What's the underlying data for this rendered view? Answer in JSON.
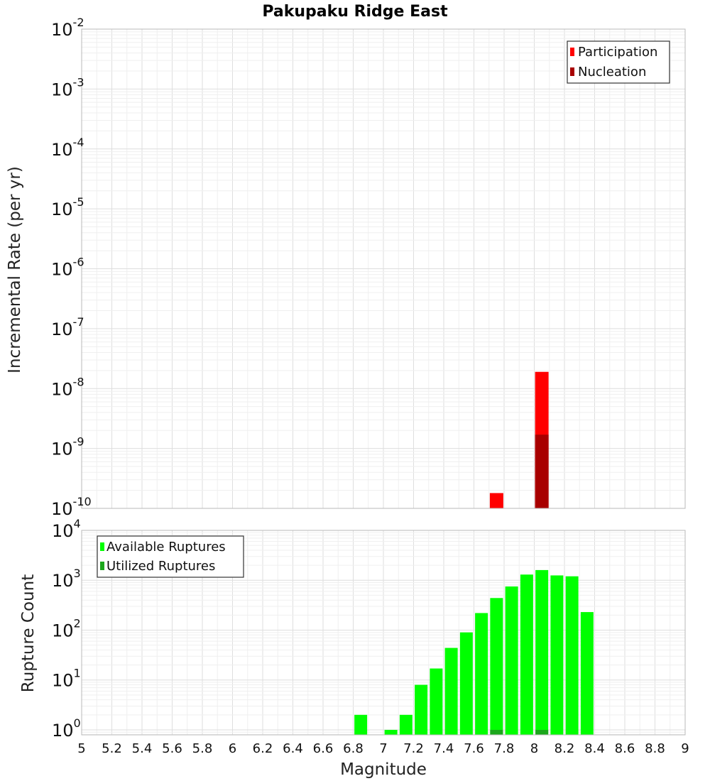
{
  "figure": {
    "title": "Pakupaku Ridge East"
  },
  "colors": {
    "participation": "#ff0000",
    "nucleation": "#a80000",
    "available": "#00ff00",
    "utilized": "#1ca71c"
  },
  "chart_data": [
    {
      "type": "bar",
      "name": "rate-panel",
      "ylabel": "Incremental Rate (per yr)",
      "xlabel": "Magnitude",
      "yscale": "log",
      "xlim": [
        5,
        9
      ],
      "ylim_exp": [
        -10,
        -2
      ],
      "ytick_base": "10",
      "ytick_exponents": [
        "-10",
        "-9",
        "-8",
        "-7",
        "-6",
        "-5",
        "-4",
        "-3",
        "-2"
      ],
      "legend": {
        "position": "top-right",
        "entries": [
          "Participation",
          "Nucleation"
        ]
      },
      "series": [
        {
          "name": "Participation",
          "x": [
            7.75,
            8.05
          ],
          "values": [
            1.8e-10,
            1.9e-08
          ]
        },
        {
          "name": "Nucleation",
          "x": [
            8.05
          ],
          "values": [
            1.7e-09
          ]
        }
      ]
    },
    {
      "type": "bar",
      "name": "count-panel",
      "ylabel": "Rupture Count",
      "xlabel": "Magnitude",
      "yscale": "log",
      "xlim": [
        5,
        9
      ],
      "ylim_exp": [
        -0.1,
        4
      ],
      "ytick_base": "10",
      "ytick_exponents": [
        "0",
        "1",
        "2",
        "3",
        "4"
      ],
      "legend": {
        "position": "top-left",
        "entries": [
          "Available Ruptures",
          "Utilized Ruptures"
        ]
      },
      "series": [
        {
          "name": "Available Ruptures",
          "x": [
            6.85,
            7.05,
            7.15,
            7.25,
            7.35,
            7.45,
            7.55,
            7.65,
            7.75,
            7.85,
            7.95,
            8.05,
            8.15,
            8.25,
            8.35
          ],
          "values": [
            2,
            1,
            2,
            8,
            17,
            44,
            90,
            220,
            440,
            750,
            1300,
            1600,
            1250,
            1200,
            230
          ]
        },
        {
          "name": "Utilized Ruptures",
          "x": [
            7.75,
            8.05
          ],
          "values": [
            1,
            1
          ]
        }
      ]
    }
  ],
  "xaxis": {
    "label": "Magnitude",
    "ticks": [
      "5",
      "5.2",
      "5.4",
      "5.6",
      "5.8",
      "6",
      "6.2",
      "6.4",
      "6.6",
      "6.8",
      "7",
      "7.2",
      "7.4",
      "7.6",
      "7.8",
      "8",
      "8.2",
      "8.4",
      "8.6",
      "8.8",
      "9"
    ]
  }
}
